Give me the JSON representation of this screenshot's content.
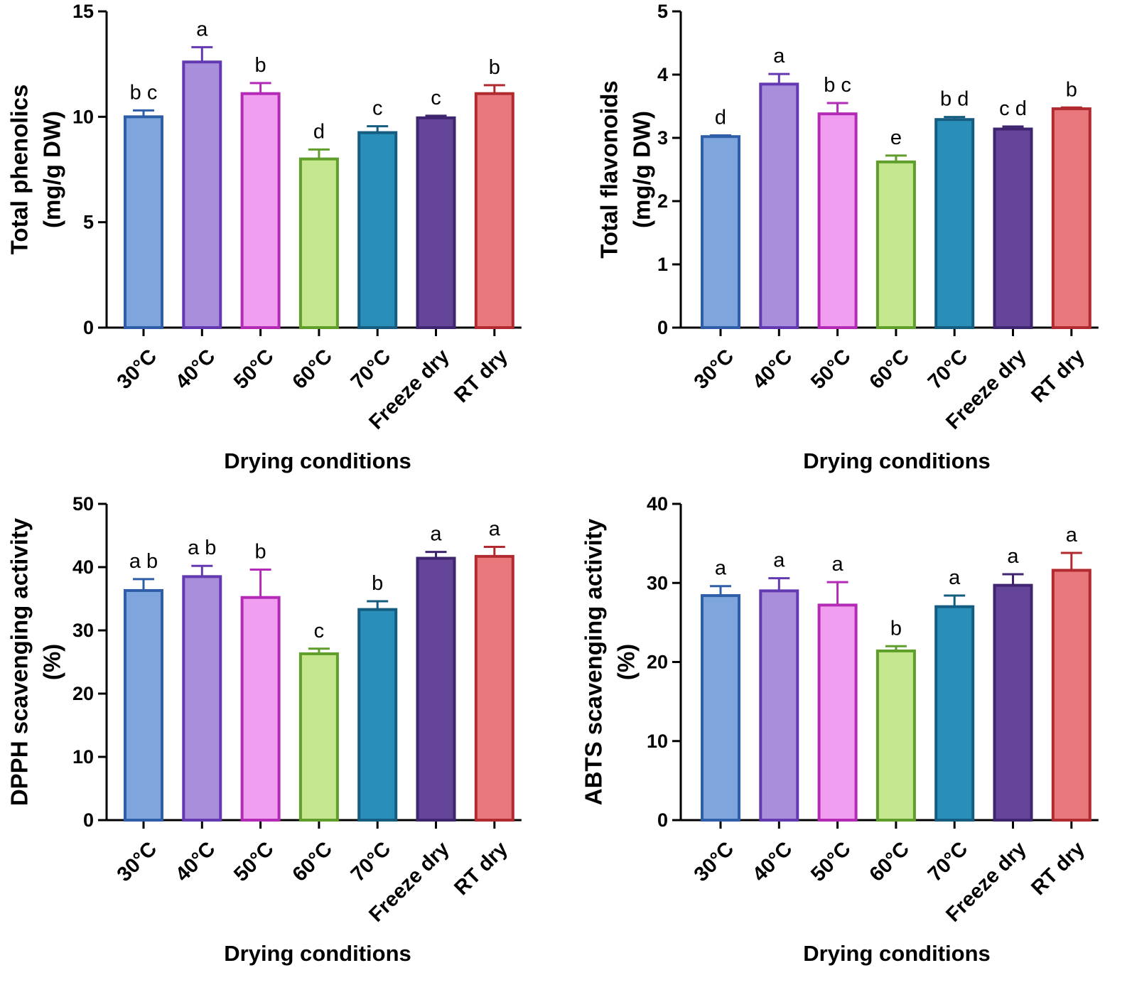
{
  "chart_data": [
    {
      "type": "bar",
      "title": "",
      "xlabel": "Drying conditions",
      "ylabel_lines": [
        "Total phenolics",
        "(mg/g DW)"
      ],
      "ylim": [
        0,
        15
      ],
      "yticks": [
        0,
        5,
        10,
        15
      ],
      "categories": [
        "30°C",
        "40°C",
        "50°C",
        "60°C",
        "70°C",
        "Freeze dry",
        "RT dry"
      ],
      "values": [
        10.0,
        12.6,
        11.1,
        8.0,
        9.25,
        9.95,
        11.1
      ],
      "errors": [
        0.3,
        0.7,
        0.5,
        0.45,
        0.3,
        0.1,
        0.4
      ],
      "significance": [
        "b c",
        "a",
        "b",
        "d",
        "c",
        "c",
        "b"
      ]
    },
    {
      "type": "bar",
      "title": "",
      "xlabel": "Drying conditions",
      "ylabel_lines": [
        "Total flavonoids",
        "(mg/g DW)"
      ],
      "ylim": [
        0,
        5
      ],
      "yticks": [
        0,
        1,
        2,
        3,
        4,
        5
      ],
      "categories": [
        "30°C",
        "40°C",
        "50°C",
        "60°C",
        "70°C",
        "Freeze dry",
        "RT dry"
      ],
      "values": [
        3.02,
        3.85,
        3.38,
        2.62,
        3.29,
        3.14,
        3.46
      ],
      "errors": [
        0.02,
        0.16,
        0.17,
        0.1,
        0.04,
        0.04,
        0.02
      ],
      "significance": [
        "d",
        "a",
        "b c",
        "e",
        "b d",
        "c d",
        "b"
      ]
    },
    {
      "type": "bar",
      "title": "",
      "xlabel": "Drying conditions",
      "ylabel_lines": [
        "DPPH scavenging activity",
        "(%)"
      ],
      "ylim": [
        0,
        50
      ],
      "yticks": [
        0,
        10,
        20,
        30,
        40,
        50
      ],
      "categories": [
        "30°C",
        "40°C",
        "50°C",
        "60°C",
        "70°C",
        "Freeze dry",
        "RT dry"
      ],
      "values": [
        36.3,
        38.5,
        35.2,
        26.3,
        33.3,
        41.4,
        41.7
      ],
      "errors": [
        1.8,
        1.7,
        4.4,
        0.8,
        1.3,
        1.0,
        1.5
      ],
      "significance": [
        "a b",
        "a b",
        "b",
        "c",
        "b",
        "a",
        "a"
      ]
    },
    {
      "type": "bar",
      "title": "",
      "xlabel": "Drying conditions",
      "ylabel_lines": [
        "ABTS scavenging activity",
        "(%)"
      ],
      "ylim": [
        0,
        40
      ],
      "yticks": [
        0,
        10,
        20,
        30,
        40
      ],
      "categories": [
        "30°C",
        "40°C",
        "50°C",
        "60°C",
        "70°C",
        "Freeze dry",
        "RT dry"
      ],
      "values": [
        28.4,
        29.0,
        27.2,
        21.4,
        27.0,
        29.7,
        31.6
      ],
      "errors": [
        1.2,
        1.6,
        2.9,
        0.6,
        1.4,
        1.4,
        2.2
      ],
      "significance": [
        "a",
        "a",
        "a",
        "b",
        "a",
        "a",
        "a"
      ]
    }
  ],
  "series_colors": [
    {
      "fill": "#7fa6dc",
      "stroke": "#2f5ea8"
    },
    {
      "fill": "#a98fdb",
      "stroke": "#6339b2"
    },
    {
      "fill": "#f29ef0",
      "stroke": "#b22ab5"
    },
    {
      "fill": "#c4e68d",
      "stroke": "#5f9e2a"
    },
    {
      "fill": "#2a8fb8",
      "stroke": "#145c80"
    },
    {
      "fill": "#65459a",
      "stroke": "#3f2470"
    },
    {
      "fill": "#e8787b",
      "stroke": "#b02a2f"
    }
  ]
}
